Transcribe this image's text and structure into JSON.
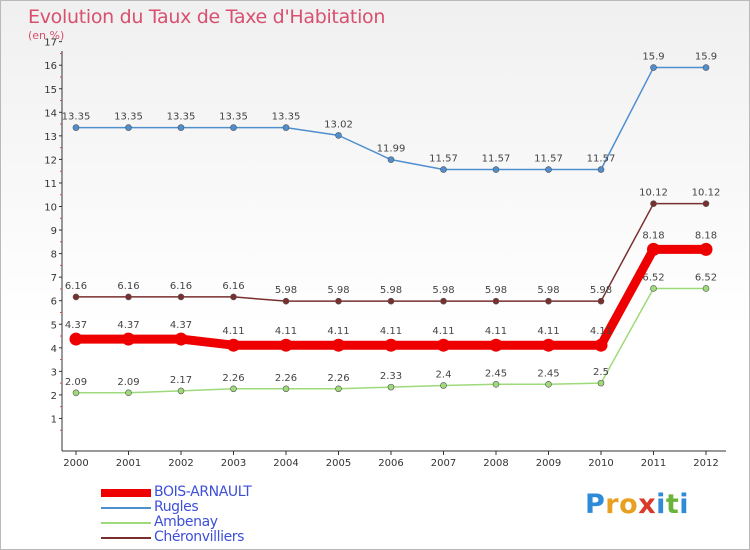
{
  "header": {
    "title": "Evolution du Taux de Taxe d'Habitation",
    "unit": "(en %)"
  },
  "brand": {
    "logo_letters": [
      "P",
      "r",
      "o",
      "x",
      "i",
      "t",
      "i"
    ],
    "logo_colors": [
      "#2f8ad8",
      "#e8a020",
      "#e8a020",
      "#d93a2a",
      "#2f8ad8",
      "#6ab43c",
      "#2f8ad8"
    ]
  },
  "chart_data": {
    "type": "line",
    "title": "Evolution du Taux de Taxe d'Habitation",
    "subtitle": "(en %)",
    "xlabel": "",
    "ylabel": "",
    "x": [
      "2000",
      "2001",
      "2002",
      "2003",
      "2004",
      "2005",
      "2006",
      "2007",
      "2008",
      "2009",
      "2010",
      "2011",
      "2012"
    ],
    "y_ticks": [
      "1",
      "2",
      "3",
      "4",
      "5",
      "6",
      "7",
      "8",
      "9",
      "10",
      "11",
      "12",
      "13",
      "14",
      "15",
      "16",
      "17"
    ],
    "ylim": [
      0,
      17
    ],
    "grid": false,
    "legend_position": "bottom-left",
    "series": [
      {
        "name": "BOIS-ARNAULT",
        "color": "#ee0000",
        "values": [
          4.37,
          4.37,
          4.37,
          4.11,
          4.11,
          4.11,
          4.11,
          4.11,
          4.11,
          4.11,
          4.11,
          8.18,
          8.18
        ],
        "labels": [
          "4.37",
          "4.37",
          "4.37",
          "4.11",
          "4.11",
          "4.11",
          "4.11",
          "4.11",
          "4.11",
          "4.11",
          "4.11",
          "8.18",
          "8.18"
        ]
      },
      {
        "name": "Rugles",
        "color": "#4f8fcf",
        "values": [
          13.35,
          13.35,
          13.35,
          13.35,
          13.35,
          13.02,
          11.99,
          11.57,
          11.57,
          11.57,
          11.57,
          15.9,
          15.9
        ],
        "labels": [
          "13.35",
          "13.35",
          "13.35",
          "13.35",
          "13.35",
          "13.02",
          "11.99",
          "11.57",
          "11.57",
          "11.57",
          "11.57",
          "15.9",
          "15.9"
        ]
      },
      {
        "name": "Ambenay",
        "color": "#9ed97a",
        "values": [
          2.09,
          2.09,
          2.17,
          2.26,
          2.26,
          2.26,
          2.33,
          2.4,
          2.45,
          2.45,
          2.5,
          6.52,
          6.52
        ],
        "labels": [
          "2.09",
          "2.09",
          "2.17",
          "2.26",
          "2.26",
          "2.26",
          "2.33",
          "2.4",
          "2.45",
          "2.45",
          "2.5",
          "6.52",
          "6.52"
        ]
      },
      {
        "name": "Chéronvilliers",
        "color": "#7a2f2f",
        "values": [
          6.16,
          6.16,
          6.16,
          6.16,
          5.98,
          5.98,
          5.98,
          5.98,
          5.98,
          5.98,
          5.98,
          10.12,
          10.12
        ],
        "labels": [
          "6.16",
          "6.16",
          "6.16",
          "6.16",
          "5.98",
          "5.98",
          "5.98",
          "5.98",
          "5.98",
          "5.98",
          "5.98",
          "10.12",
          "10.12"
        ]
      }
    ]
  }
}
